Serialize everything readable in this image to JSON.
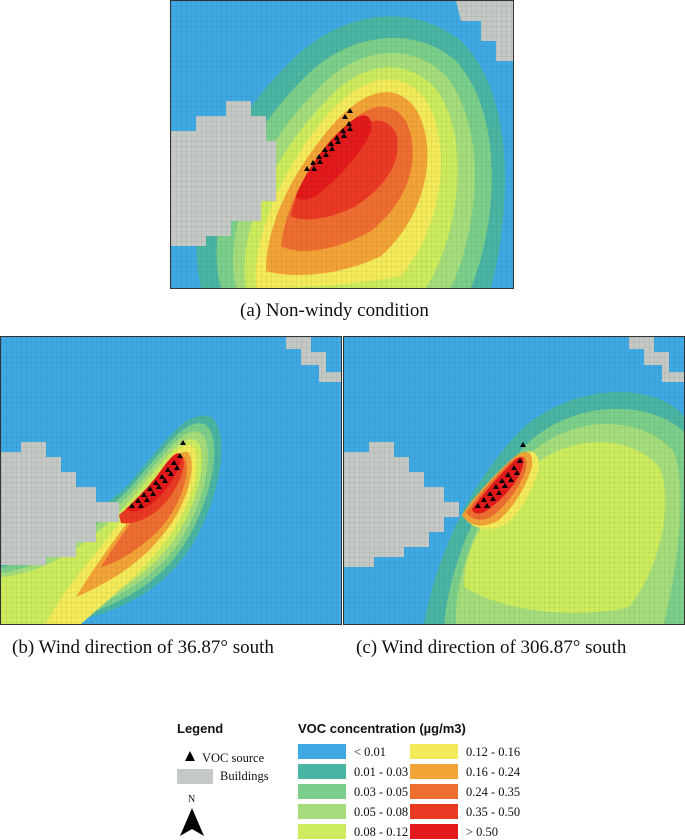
{
  "panels": [
    {
      "id": "a",
      "caption": "(a) Non-windy condition"
    },
    {
      "id": "b",
      "caption": "(b) Wind direction of 36.87° south"
    },
    {
      "id": "c",
      "caption": "(c) Wind direction of 306.87° south"
    }
  ],
  "legend": {
    "title": "Legend",
    "source_label": "VOC source",
    "buildings_label": "Buildings",
    "north_label": "N",
    "concentration_title": "VOC concentration (µg/m3)",
    "classes": [
      {
        "label": "< 0.01",
        "color": "#3fa9e3"
      },
      {
        "label": "0.01 - 0.03",
        "color": "#4bb5a3"
      },
      {
        "label": "0.03 - 0.05",
        "color": "#7ccf8a"
      },
      {
        "label": "0.05 - 0.08",
        "color": "#a6dd7c"
      },
      {
        "label": "0.08 - 0.12",
        "color": "#ccec5d"
      },
      {
        "label": "0.12 - 0.16",
        "color": "#f4eb5a"
      },
      {
        "label": "0.16 - 0.24",
        "color": "#f3a437"
      },
      {
        "label": "0.24 - 0.35",
        "color": "#ee6e31"
      },
      {
        "label": "0.35 - 0.50",
        "color": "#ea3a24"
      },
      {
        "label": "> 0.50",
        "color": "#e3191b"
      }
    ],
    "building_color": "#c5c9c6"
  }
}
